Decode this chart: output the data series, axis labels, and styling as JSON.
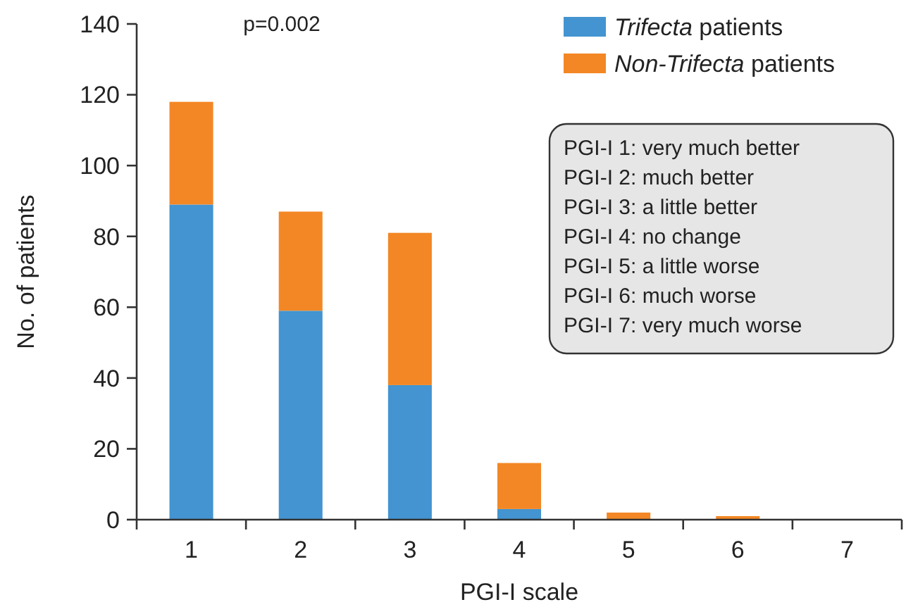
{
  "chart_data": {
    "type": "bar",
    "stacked": true,
    "xlabel": "PGI-I scale",
    "ylabel": "No. of patients",
    "categories": [
      "1",
      "2",
      "3",
      "4",
      "5",
      "6",
      "7"
    ],
    "series": [
      {
        "name": "Trifecta patients",
        "color": "#4394d0",
        "values": [
          89,
          59,
          38,
          3,
          0,
          0,
          0
        ]
      },
      {
        "name": "Non-Trifecta patients",
        "color": "#f38725",
        "values": [
          29,
          28,
          43,
          13,
          2,
          1,
          0
        ]
      }
    ],
    "ylim": [
      0,
      140
    ],
    "yticks": [
      0,
      20,
      40,
      60,
      80,
      100,
      120,
      140
    ],
    "grid": false,
    "legend": "top right",
    "annotations": [
      "p=0.002",
      "PGI-I 1: very much better\nPGI-I 2: much better\nPGI-I 3: a little better\nPGI-I 4: no change\nPGI-I 5: a little worse\nPGI-I 6: much worse\nPGI-I 7: very much worse"
    ]
  }
}
